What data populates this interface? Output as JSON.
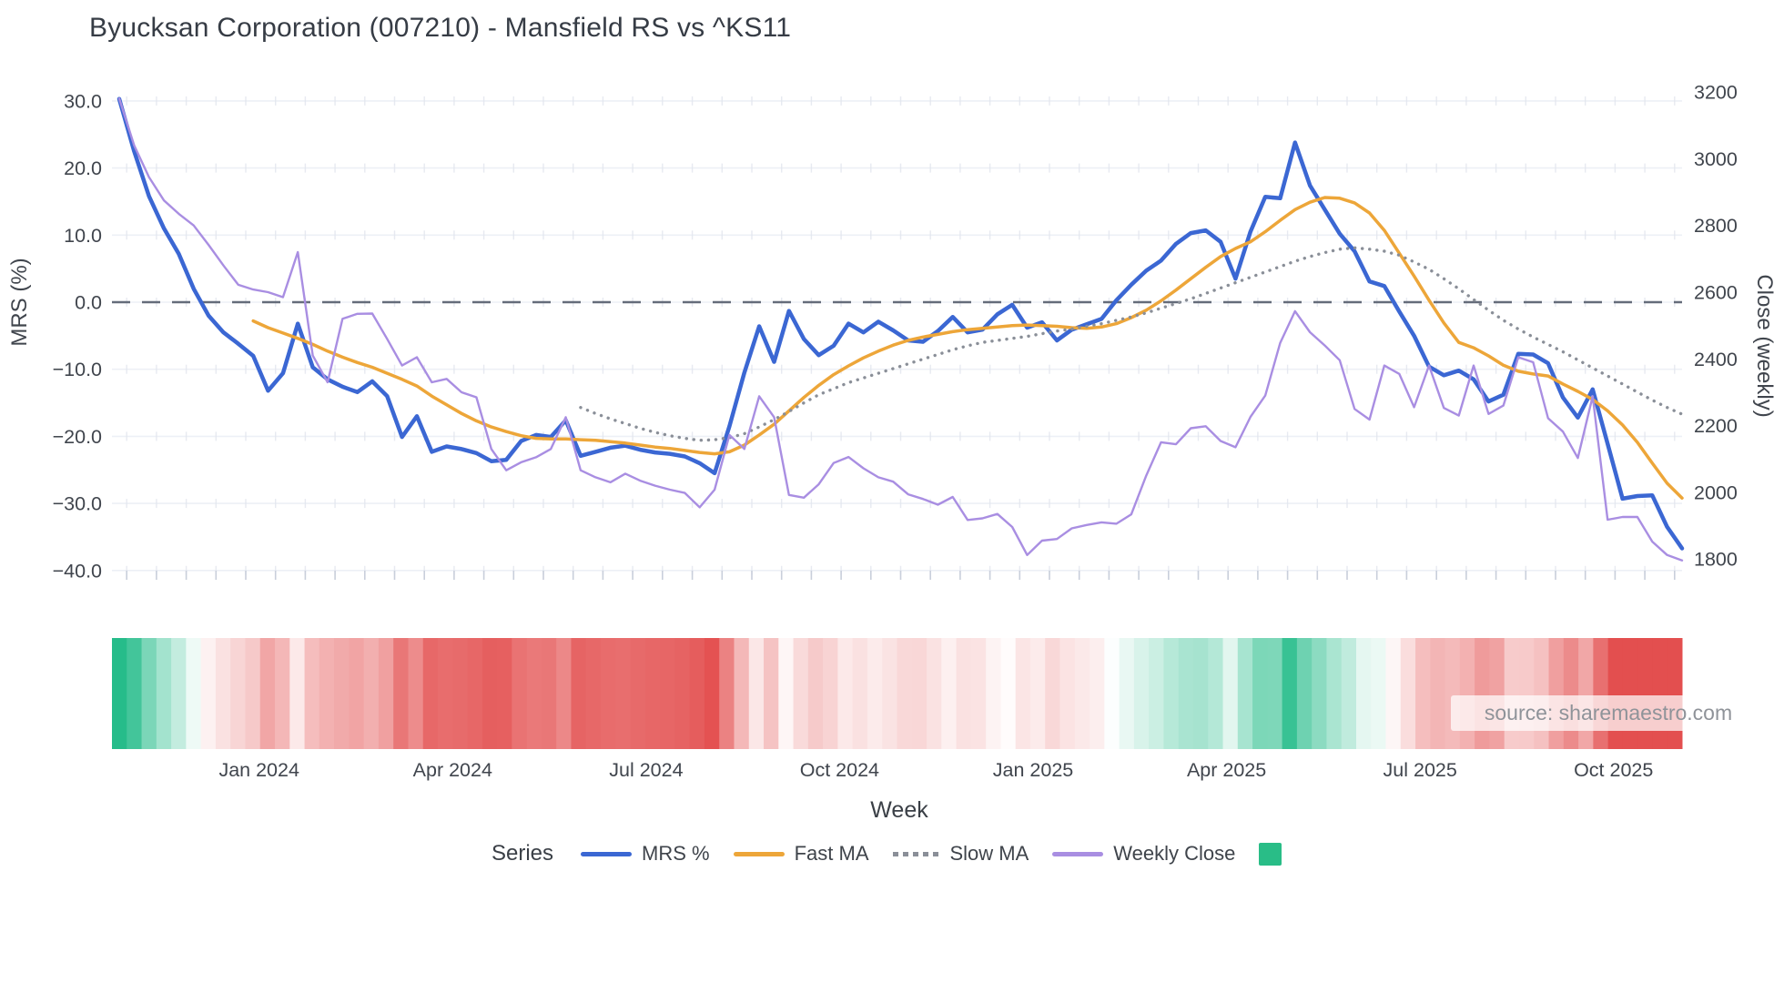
{
  "title": "Byucksan Corporation (007210) - Mansfield RS vs ^KS11",
  "source_note": "source: sharemaestro.com",
  "colors": {
    "mrs": "#3b67d3",
    "fast_ma": "#eda639",
    "slow_ma": "#8a8f98",
    "weekly_close": "#a98ee2",
    "zero_line": "#656c7a",
    "gridline": "#edf0f6",
    "minor_tick": "#c9cfdb",
    "heat_positive": "#26bc8a",
    "heat_negative": "#e34f4f",
    "axis_text": "#40454d"
  },
  "axes": {
    "left": {
      "title": "MRS (%)",
      "tick_values": [
        30,
        20,
        10,
        0,
        -10,
        -20,
        -30,
        -40
      ],
      "tick_labels": [
        "30.0",
        "20.0",
        "10.0",
        "0.0",
        "−10.0",
        "−20.0",
        "−30.0",
        "−40.0"
      ]
    },
    "right": {
      "title": "Close (weekly)",
      "tick_values": [
        3200,
        3000,
        2800,
        2600,
        2400,
        2200,
        2000,
        1800
      ],
      "tick_labels": [
        "3200",
        "3000",
        "2800",
        "2600",
        "2400",
        "2200",
        "2000",
        "1800"
      ]
    },
    "x": {
      "title": "Week",
      "tick_labels": [
        "Jan 2024",
        "Apr 2024",
        "Jul 2024",
        "Oct 2024",
        "Jan 2025",
        "Apr 2025",
        "Jul 2025",
        "Oct 2025"
      ],
      "tick_weeks": [
        9.4,
        22.4,
        35.4,
        48.4,
        61.4,
        74.4,
        87.4,
        100.4
      ]
    }
  },
  "legend": {
    "label": "Series",
    "items": [
      {
        "label": "MRS %",
        "swatch": "line",
        "color": "#3b67d3"
      },
      {
        "label": "Fast MA",
        "swatch": "line",
        "color": "#eda639"
      },
      {
        "label": "Slow MA",
        "swatch": "dotted",
        "color": "#8a8f98"
      },
      {
        "label": "Weekly Close",
        "swatch": "line",
        "color": "#a98ee2"
      },
      {
        "label": "",
        "swatch": "square",
        "color": "#29bd87"
      }
    ]
  },
  "chart_data": {
    "type": "line",
    "x_unit": "weekly, late Oct 2023 - early Nov 2025",
    "left_axis_range": [
      -41.5,
      31.5
    ],
    "right_axis_range": [
      1736,
      3204
    ],
    "grid": true,
    "legend_position": "bottom",
    "zero_reference_line": 0,
    "heatmap_note": "weekly strip below plot, green = positive MRS, red = negative MRS",
    "series": [
      {
        "name": "MRS %",
        "axis": "left",
        "style": "solid",
        "color": "#3b67d3",
        "values": [
          30.3,
          22.5,
          15.8,
          11.0,
          7.2,
          2.0,
          -2.0,
          -4.5,
          -6.2,
          -8.0,
          -13.2,
          -10.6,
          -3.2,
          -9.7,
          -11.5,
          -12.6,
          -13.4,
          -11.8,
          -14.0,
          -20.1,
          -17.0,
          -22.3,
          -21.5,
          -21.9,
          -22.5,
          -23.7,
          -23.5,
          -20.7,
          -19.8,
          -20.1,
          -17.6,
          -22.9,
          -22.3,
          -21.7,
          -21.4,
          -22.0,
          -22.4,
          -22.6,
          -23.0,
          -24.0,
          -25.5,
          -18.5,
          -10.5,
          -3.6,
          -8.9,
          -1.3,
          -5.5,
          -7.9,
          -6.5,
          -3.2,
          -4.5,
          -2.9,
          -4.2,
          -5.7,
          -5.9,
          -4.3,
          -2.2,
          -4.5,
          -4.1,
          -1.8,
          -0.4,
          -3.8,
          -3.0,
          -5.7,
          -4.1,
          -3.3,
          -2.5,
          0.3,
          2.6,
          4.7,
          6.2,
          8.7,
          10.3,
          10.7,
          9.0,
          3.5,
          10.5,
          15.7,
          15.5,
          23.8,
          17.4,
          13.8,
          10.2,
          7.6,
          3.1,
          2.4,
          -1.4,
          -5.0,
          -9.6,
          -10.9,
          -10.2,
          -11.5,
          -14.8,
          -13.8,
          -7.7,
          -7.8,
          -9.1,
          -14.2,
          -17.2,
          -13.0,
          -21.1,
          -29.3,
          -28.9,
          -28.8,
          -33.5,
          -36.7
        ]
      },
      {
        "name": "Fast MA",
        "axis": "left",
        "style": "solid",
        "color": "#eda639",
        "values": [
          null,
          null,
          null,
          null,
          null,
          null,
          null,
          null,
          null,
          -2.8,
          -3.8,
          -4.6,
          -5.4,
          -6.3,
          -7.3,
          -8.2,
          -9.0,
          -9.7,
          -10.6,
          -11.5,
          -12.5,
          -14.0,
          -15.3,
          -16.6,
          -17.7,
          -18.6,
          -19.3,
          -19.9,
          -20.3,
          -20.4,
          -20.4,
          -20.5,
          -20.6,
          -20.8,
          -21.0,
          -21.3,
          -21.6,
          -21.8,
          -22.1,
          -22.4,
          -22.6,
          -22.3,
          -21.3,
          -19.8,
          -18.2,
          -16.2,
          -14.2,
          -12.4,
          -10.8,
          -9.5,
          -8.3,
          -7.3,
          -6.4,
          -5.7,
          -5.2,
          -4.8,
          -4.4,
          -4.1,
          -3.9,
          -3.7,
          -3.5,
          -3.4,
          -3.5,
          -3.6,
          -3.8,
          -3.9,
          -3.7,
          -3.2,
          -2.3,
          -1.2,
          0.2,
          1.8,
          3.5,
          5.2,
          6.8,
          8.0,
          9.0,
          10.5,
          12.2,
          13.8,
          14.9,
          15.6,
          15.5,
          14.8,
          13.3,
          10.7,
          7.3,
          3.9,
          0.3,
          -3.1,
          -6.0,
          -6.8,
          -8.0,
          -9.4,
          -10.3,
          -10.7,
          -11.0,
          -12.2,
          -13.3,
          -14.5,
          -16.2,
          -18.3,
          -20.9,
          -24.0,
          -27.0,
          -29.2
        ]
      },
      {
        "name": "Slow MA",
        "axis": "left",
        "style": "dotted",
        "color": "#8a8f98",
        "values": [
          null,
          null,
          null,
          null,
          null,
          null,
          null,
          null,
          null,
          null,
          null,
          null,
          null,
          null,
          null,
          null,
          null,
          null,
          null,
          null,
          null,
          null,
          null,
          null,
          null,
          null,
          null,
          null,
          null,
          null,
          null,
          -15.7,
          -16.6,
          -17.4,
          -18.1,
          -18.8,
          -19.4,
          -19.9,
          -20.3,
          -20.6,
          -20.5,
          -20.2,
          -19.6,
          -18.6,
          -17.5,
          -16.3,
          -15.0,
          -13.8,
          -12.9,
          -12.0,
          -11.3,
          -10.6,
          -9.9,
          -9.2,
          -8.5,
          -7.8,
          -7.1,
          -6.5,
          -6.0,
          -5.7,
          -5.4,
          -5.1,
          -4.7,
          -4.3,
          -4.0,
          -3.6,
          -3.2,
          -2.7,
          -2.2,
          -1.6,
          -0.9,
          -0.2,
          0.5,
          1.3,
          2.1,
          2.9,
          3.7,
          4.5,
          5.3,
          6.1,
          6.8,
          7.4,
          7.9,
          8.1,
          7.9,
          7.6,
          7.0,
          6.0,
          4.9,
          3.5,
          2.0,
          0.4,
          -1.2,
          -2.7,
          -4.0,
          -5.2,
          -6.3,
          -7.4,
          -8.6,
          -9.8,
          -11.0,
          -12.2,
          -13.4,
          -14.6,
          -15.7,
          -16.7
        ]
      },
      {
        "name": "Weekly Close",
        "axis": "right",
        "style": "solid",
        "color": "#a98ee2",
        "values": [
          3180,
          3040,
          2945,
          2875,
          2835,
          2800,
          2742,
          2680,
          2622,
          2608,
          2600,
          2585,
          2720,
          2410,
          2330,
          2520,
          2535,
          2536,
          2460,
          2380,
          2405,
          2330,
          2340,
          2300,
          2285,
          2130,
          2066,
          2090,
          2105,
          2130,
          2225,
          2066,
          2045,
          2030,
          2056,
          2035,
          2020,
          2008,
          1998,
          1955,
          2008,
          2172,
          2130,
          2288,
          2225,
          1992,
          1984,
          2024,
          2088,
          2106,
          2072,
          2045,
          2032,
          1994,
          1980,
          1963,
          1986,
          1917,
          1922,
          1935,
          1896,
          1812,
          1855,
          1860,
          1892,
          1902,
          1910,
          1906,
          1934,
          2050,
          2150,
          2144,
          2192,
          2198,
          2154,
          2135,
          2226,
          2290,
          2448,
          2543,
          2480,
          2440,
          2396,
          2250,
          2218,
          2380,
          2355,
          2255,
          2380,
          2253,
          2230,
          2380,
          2235,
          2260,
          2405,
          2390,
          2222,
          2182,
          2103,
          2288,
          1918,
          1926,
          1926,
          1852,
          1812,
          1796
        ]
      }
    ]
  }
}
